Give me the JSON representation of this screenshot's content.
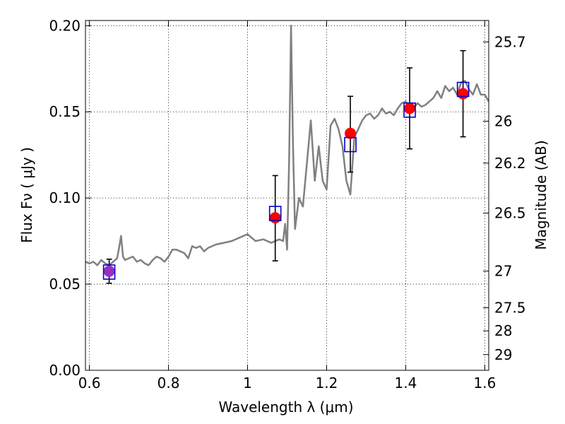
{
  "chart_data": {
    "type": "line",
    "xlabel": "Wavelength  λ (μm)",
    "ylabel": "Flux  Fν  ( μJy )",
    "ylabel_right": "Magnitude (AB)",
    "xlim": [
      0.59,
      1.61
    ],
    "ylim": [
      0.0,
      0.203
    ],
    "grid": true,
    "x_ticks": [
      {
        "v": 0.6,
        "label": "0.6"
      },
      {
        "v": 0.8,
        "label": "0.8"
      },
      {
        "v": 1.0,
        "label": "1"
      },
      {
        "v": 1.2,
        "label": "1.2"
      },
      {
        "v": 1.4,
        "label": "1.4"
      },
      {
        "v": 1.6,
        "label": "1.6"
      }
    ],
    "y_ticks": [
      {
        "v": 0.0,
        "label": "0.00"
      },
      {
        "v": 0.05,
        "label": "0.05"
      },
      {
        "v": 0.1,
        "label": "0.10"
      },
      {
        "v": 0.15,
        "label": "0.15"
      },
      {
        "v": 0.2,
        "label": "0.20"
      }
    ],
    "mag_ticks": [
      {
        "mag": 25.7,
        "label": "25.7"
      },
      {
        "mag": 26,
        "label": "26"
      },
      {
        "mag": 26.2,
        "label": "26.2"
      },
      {
        "mag": 26.5,
        "label": "26.5"
      },
      {
        "mag": 27,
        "label": "27"
      },
      {
        "mag": 27.5,
        "label": "27.5"
      },
      {
        "mag": 28,
        "label": "28"
      },
      {
        "mag": 29,
        "label": "29"
      }
    ],
    "series": [
      {
        "kind": "spectrum",
        "color": "#808080",
        "x": [
          0.59,
          0.6,
          0.61,
          0.62,
          0.63,
          0.64,
          0.65,
          0.66,
          0.67,
          0.675,
          0.68,
          0.685,
          0.69,
          0.7,
          0.71,
          0.72,
          0.73,
          0.74,
          0.75,
          0.76,
          0.77,
          0.78,
          0.79,
          0.8,
          0.81,
          0.82,
          0.83,
          0.84,
          0.85,
          0.86,
          0.87,
          0.88,
          0.89,
          0.9,
          0.92,
          0.94,
          0.96,
          0.98,
          1.0,
          1.02,
          1.04,
          1.06,
          1.08,
          1.09,
          1.095,
          1.1,
          1.105,
          1.11,
          1.115,
          1.12,
          1.13,
          1.14,
          1.15,
          1.16,
          1.17,
          1.18,
          1.19,
          1.2,
          1.21,
          1.22,
          1.23,
          1.24,
          1.25,
          1.26,
          1.27,
          1.28,
          1.29,
          1.3,
          1.31,
          1.32,
          1.33,
          1.34,
          1.35,
          1.36,
          1.37,
          1.38,
          1.39,
          1.4,
          1.41,
          1.42,
          1.43,
          1.44,
          1.45,
          1.46,
          1.47,
          1.475,
          1.48,
          1.485,
          1.49,
          1.5,
          1.51,
          1.52,
          1.53,
          1.54,
          1.55,
          1.56,
          1.57,
          1.58,
          1.59,
          1.6,
          1.61
        ],
        "y": [
          0.063,
          0.062,
          0.063,
          0.061,
          0.064,
          0.062,
          0.061,
          0.063,
          0.065,
          0.071,
          0.078,
          0.066,
          0.064,
          0.065,
          0.066,
          0.063,
          0.064,
          0.062,
          0.061,
          0.064,
          0.066,
          0.065,
          0.063,
          0.066,
          0.07,
          0.07,
          0.069,
          0.068,
          0.065,
          0.072,
          0.071,
          0.072,
          0.069,
          0.071,
          0.073,
          0.074,
          0.075,
          0.077,
          0.079,
          0.075,
          0.076,
          0.074,
          0.076,
          0.075,
          0.085,
          0.07,
          0.12,
          0.2,
          0.13,
          0.082,
          0.1,
          0.095,
          0.12,
          0.145,
          0.11,
          0.13,
          0.11,
          0.105,
          0.142,
          0.146,
          0.14,
          0.13,
          0.11,
          0.102,
          0.135,
          0.14,
          0.145,
          0.148,
          0.149,
          0.146,
          0.148,
          0.152,
          0.149,
          0.15,
          0.148,
          0.152,
          0.155,
          0.156,
          0.153,
          0.152,
          0.155,
          0.153,
          0.154,
          0.156,
          0.158,
          0.16,
          0.162,
          0.16,
          0.158,
          0.165,
          0.162,
          0.164,
          0.16,
          0.167,
          0.168,
          0.163,
          0.16,
          0.166,
          0.16,
          0.16,
          0.156
        ]
      },
      {
        "kind": "model-boxes",
        "color": "#0000cc",
        "x": [
          0.65,
          1.07,
          1.26,
          1.41,
          1.545
        ],
        "y": [
          0.057,
          0.091,
          0.131,
          0.151,
          0.163
        ]
      },
      {
        "kind": "observed-points",
        "color": "#ff0000",
        "x": [
          0.65,
          1.07,
          1.26,
          1.41,
          1.545
        ],
        "y": [
          0.0575,
          0.0885,
          0.1375,
          0.152,
          0.1605
        ],
        "err_low": [
          0.0505,
          0.0635,
          0.115,
          0.1285,
          0.1355
        ],
        "err_high": [
          0.0645,
          0.113,
          0.159,
          0.1755,
          0.1855
        ],
        "first_point_color": "#9a2fc2"
      }
    ]
  }
}
